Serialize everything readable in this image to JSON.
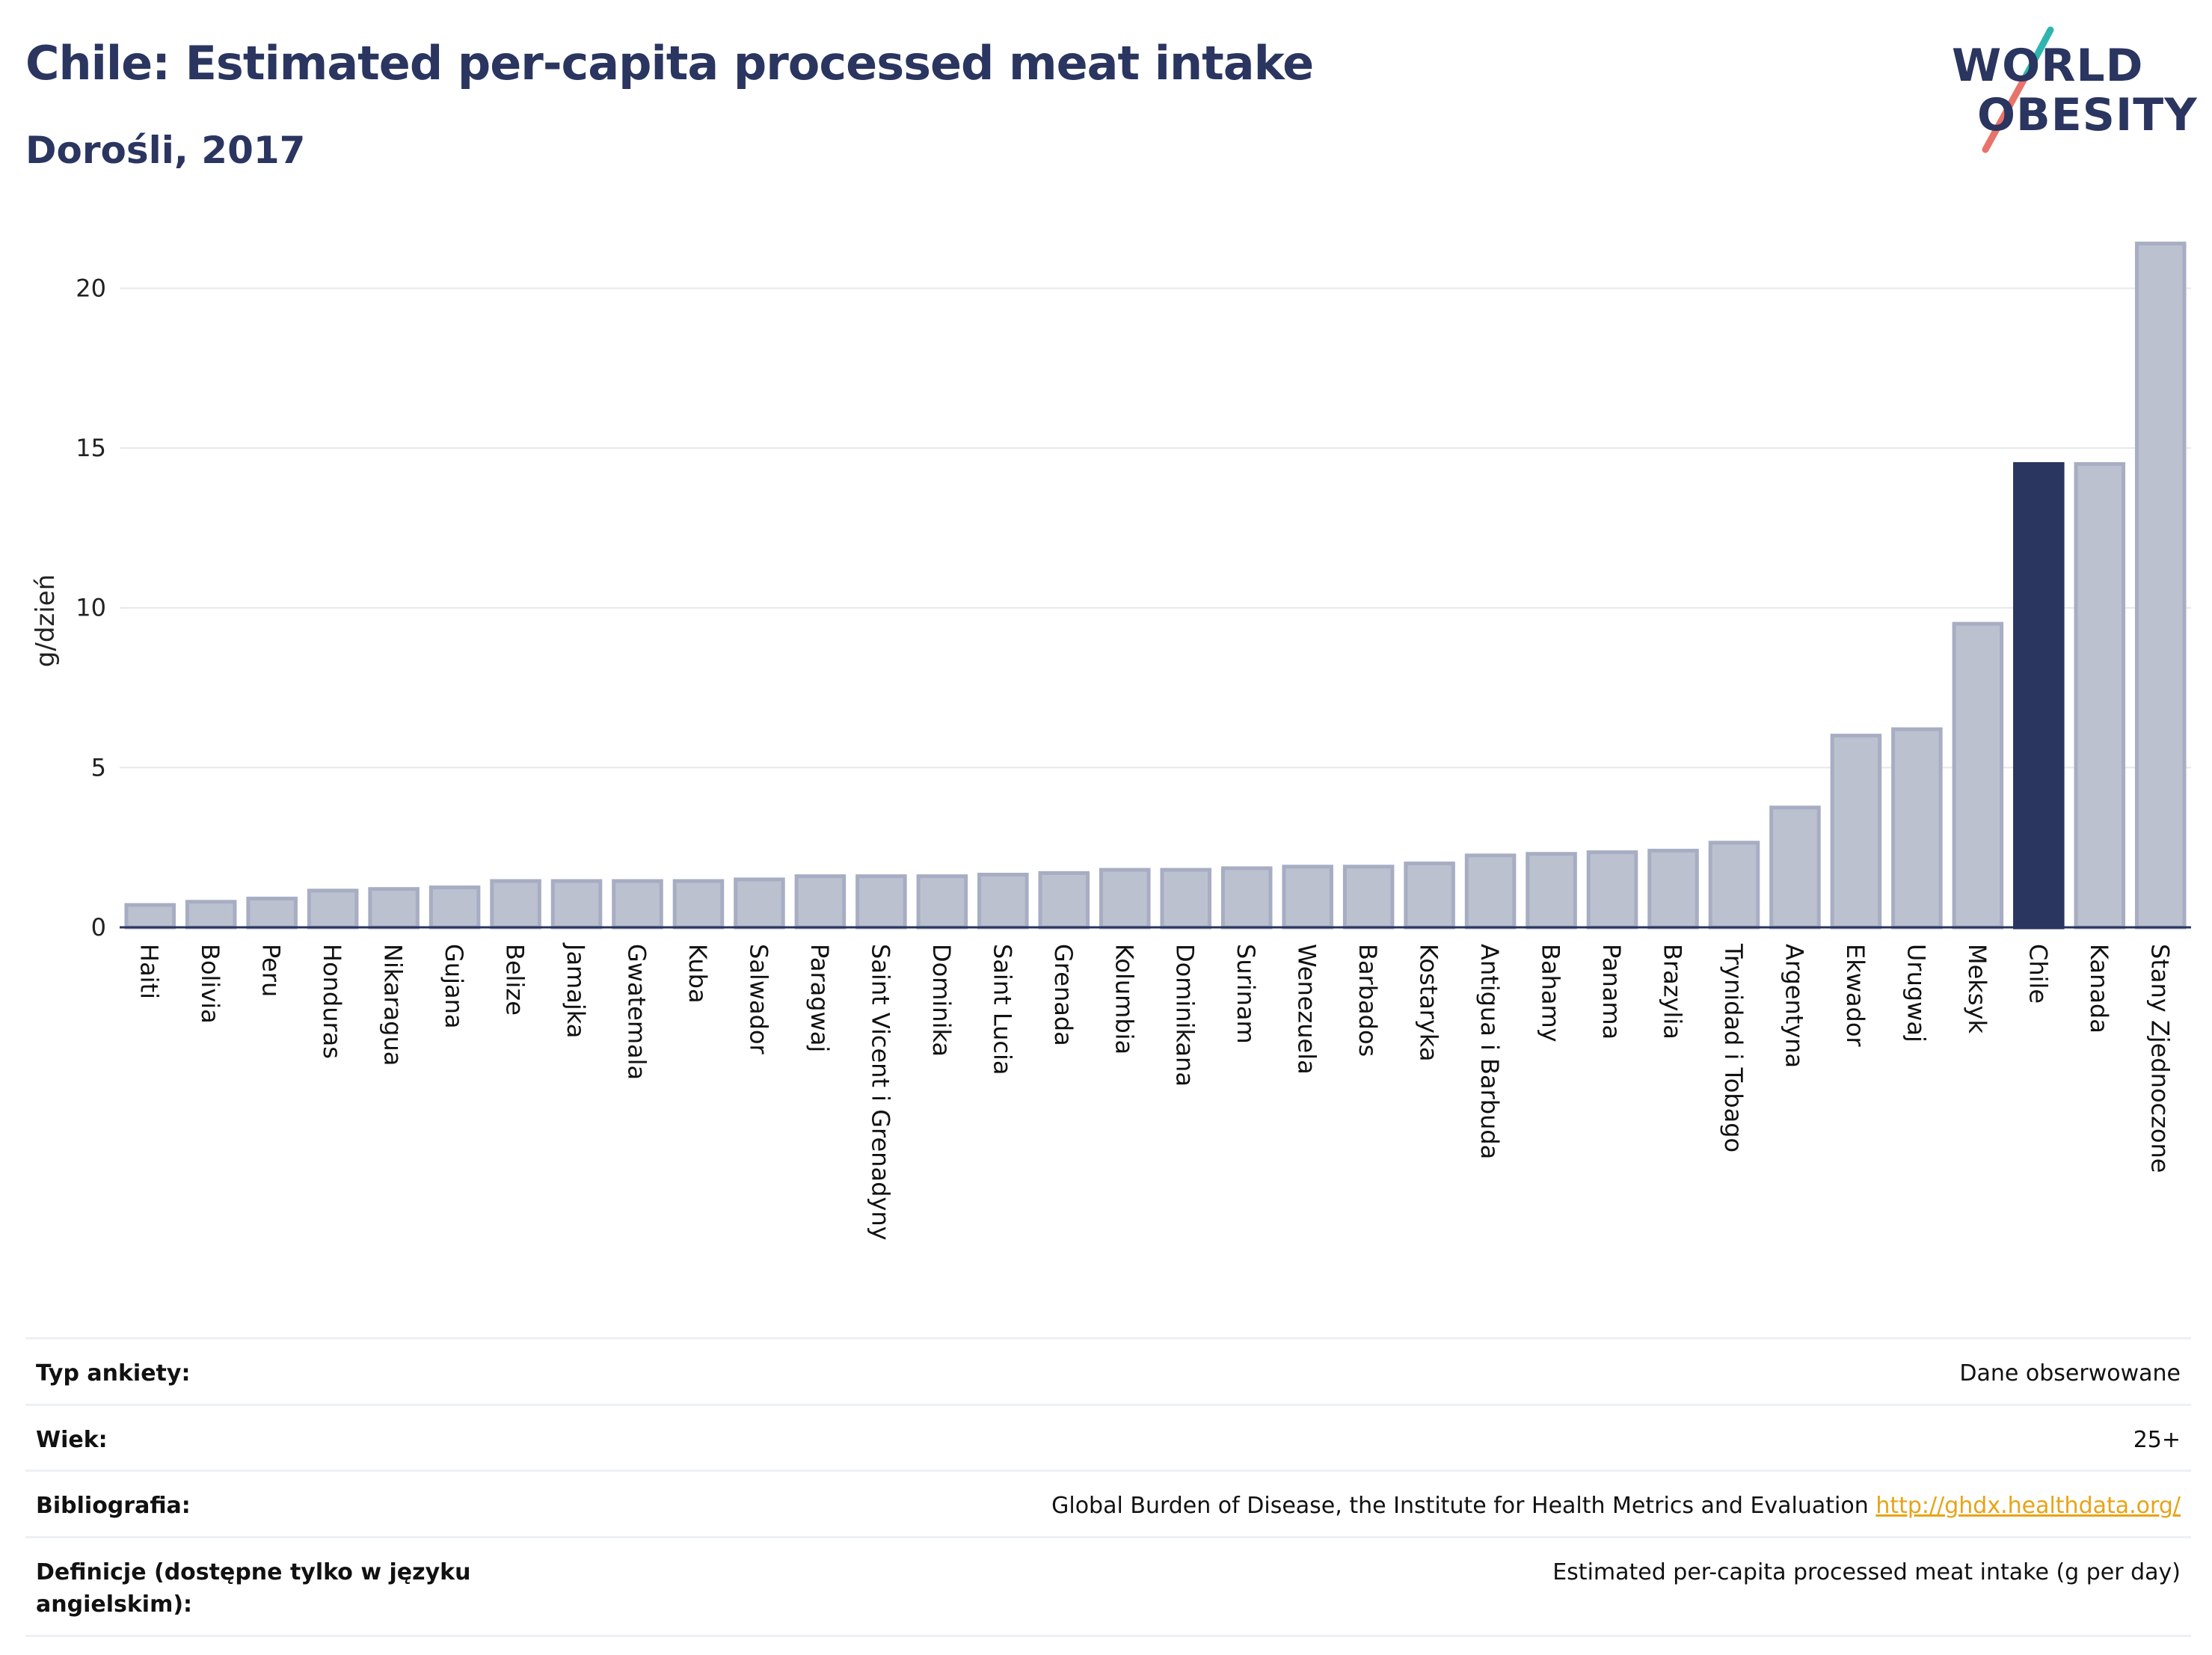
{
  "header": {
    "title": "Chile: Estimated per-capita processed meat intake",
    "subtitle": "Dorośli, 2017"
  },
  "logo": {
    "line1": "WORLD",
    "line2": "OBESITY"
  },
  "colors": {
    "highlight": "#2a3560",
    "bar": "#bcc1cf",
    "bar_border": "#a7adc3",
    "title": "#2a3560",
    "link": "#e8a317",
    "logo_teal": "#2fb5b0",
    "logo_coral": "#e8736a"
  },
  "chart_data": {
    "type": "bar",
    "ylabel": "g/dzień",
    "ylim": [
      0,
      22
    ],
    "yticks": [
      0,
      5,
      10,
      15,
      20
    ],
    "highlight": "Chile",
    "categories": [
      "Haiti",
      "Bolivia",
      "Peru",
      "Honduras",
      "Nikaragua",
      "Gujana",
      "Belize",
      "Jamajka",
      "Gwatemala",
      "Kuba",
      "Salwador",
      "Paragwaj",
      "Saint Vicent i Grenadyny",
      "Dominika",
      "Saint Lucia",
      "Grenada",
      "Kolumbia",
      "Dominikana",
      "Surinam",
      "Wenezuela",
      "Barbados",
      "Kostaryka",
      "Antigua i Barbuda",
      "Bahamy",
      "Panama",
      "Brazylia",
      "Trynidad i Tobago",
      "Argentyna",
      "Ekwador",
      "Urugwaj",
      "Meksyk",
      "Chile",
      "Kanada",
      "Stany Zjednoczone"
    ],
    "values": [
      0.7,
      0.8,
      0.9,
      1.15,
      1.2,
      1.25,
      1.45,
      1.45,
      1.45,
      1.45,
      1.5,
      1.6,
      1.6,
      1.6,
      1.65,
      1.7,
      1.8,
      1.8,
      1.85,
      1.9,
      1.9,
      2.0,
      2.25,
      2.3,
      2.35,
      2.4,
      2.65,
      3.75,
      6.0,
      6.2,
      9.5,
      14.5,
      14.5,
      21.4
    ],
    "grid": true,
    "legend": "none"
  },
  "info": [
    {
      "label": "Typ ankiety:",
      "value": "Dane obserwowane"
    },
    {
      "label": "Wiek:",
      "value": "25+"
    },
    {
      "label": "Bibliografia:",
      "value": "Global Burden of Disease, the Institute for Health Metrics and Evaluation",
      "link": "http://ghdx.healthdata.org/"
    },
    {
      "label": "Definicje (dostępne tylko w języku angielskim):",
      "value": "Estimated per-capita processed meat intake (g per day)"
    }
  ]
}
